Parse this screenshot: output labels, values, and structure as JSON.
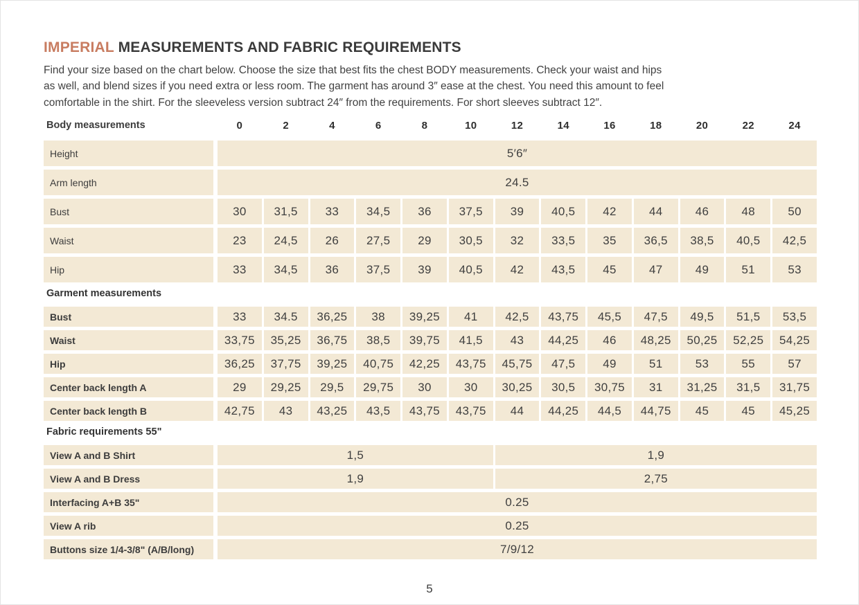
{
  "page": {
    "title_highlight": "IMPERIAL",
    "title_rest": " MEASUREMENTS AND FABRIC REQUIREMENTS",
    "intro_lines": [
      "Find your size based on the chart below. Choose the size that best fits the chest BODY measurements.  Check your waist and hips",
      "as well, and blend sizes if you need extra or less room. The garment has around 3″ ease at the chest. You need this amount to feel",
      "comfortable in the shirt. For the sleeveless version subtract 24″ from the requirements. For short sleeves subtract 12″."
    ],
    "page_number": "5"
  },
  "table": {
    "header_label": "Body measurements",
    "sizes": [
      "0",
      "2",
      "4",
      "6",
      "8",
      "10",
      "12",
      "14",
      "16",
      "18",
      "20",
      "22",
      "24"
    ],
    "sections": [
      {
        "name": null,
        "rows": [
          {
            "type": "merged",
            "label": "Height",
            "value": "5′6″"
          },
          {
            "type": "merged",
            "label": "Arm length",
            "value": "24.5"
          },
          {
            "type": "values",
            "label": "Bust",
            "values": [
              "30",
              "31,5",
              "33",
              "34,5",
              "36",
              "37,5",
              "39",
              "40,5",
              "42",
              "44",
              "46",
              "48",
              "50"
            ]
          },
          {
            "type": "values",
            "label": "Waist",
            "values": [
              "23",
              "24,5",
              "26",
              "27,5",
              "29",
              "30,5",
              "32",
              "33,5",
              "35",
              "36,5",
              "38,5",
              "40,5",
              "42,5"
            ]
          },
          {
            "type": "values",
            "label": "Hip",
            "values": [
              "33",
              "34,5",
              "36",
              "37,5",
              "39",
              "40,5",
              "42",
              "43,5",
              "45",
              "47",
              "49",
              "51",
              "53"
            ]
          }
        ]
      },
      {
        "name": "Garment measurements",
        "rows": [
          {
            "type": "values",
            "label": "Bust",
            "values": [
              "33",
              "34.5",
              "36,25",
              "38",
              "39,25",
              "41",
              "42,5",
              "43,75",
              "45,5",
              "47,5",
              "49,5",
              "51,5",
              "53,5"
            ]
          },
          {
            "type": "values",
            "label": "Waist",
            "values": [
              "33,75",
              "35,25",
              "36,75",
              "38,5",
              "39,75",
              "41,5",
              "43",
              "44,25",
              "46",
              "48,25",
              "50,25",
              "52,25",
              "54,25"
            ]
          },
          {
            "type": "values",
            "label": "Hip",
            "values": [
              "36,25",
              "37,75",
              "39,25",
              "40,75",
              "42,25",
              "43,75",
              "45,75",
              "47,5",
              "49",
              "51",
              "53",
              "55",
              "57"
            ]
          },
          {
            "type": "values",
            "label": "Center back length A",
            "values": [
              "29",
              "29,25",
              "29,5",
              "29,75",
              "30",
              "30",
              "30,25",
              "30,5",
              "30,75",
              "31",
              "31,25",
              "31,5",
              "31,75"
            ]
          },
          {
            "type": "values",
            "label": "Center back length B",
            "values": [
              "42,75",
              "43",
              "43,25",
              "43,5",
              "43,75",
              "43,75",
              "44",
              "44,25",
              "44,5",
              "44,75",
              "45",
              "45",
              "45,25"
            ]
          }
        ]
      },
      {
        "name": "Fabric requirements 55\"",
        "rows": [
          {
            "type": "split",
            "label": "View A and B Shirt",
            "left": "1,5",
            "right": "1,9"
          },
          {
            "type": "split",
            "label": "View A and B Dress",
            "left": "1,9",
            "right": "2,75"
          },
          {
            "type": "merged",
            "label": "Interfacing  A+B 35\"",
            "value": "0.25"
          },
          {
            "type": "merged",
            "label": "View A rib",
            "value": "0.25"
          },
          {
            "type": "merged",
            "label": "Buttons size 1/4-3/8\" (A/B/long)",
            "value": "7/9/12"
          }
        ]
      }
    ]
  },
  "colors": {
    "accent": "#c87c60",
    "cell_background": "#f3e9d5",
    "text": "#3c3c3c"
  }
}
